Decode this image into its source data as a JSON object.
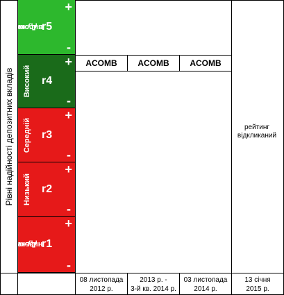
{
  "y_axis_label": "Рівні надійності депозитних вкладів",
  "levels": [
    {
      "name_line1": "Дуже",
      "name_line2": "високий",
      "code": "r5",
      "plus": "+",
      "minus": "-",
      "color": "#2db82d"
    },
    {
      "name_line1": "Високий",
      "name_line2": "",
      "code": "r4",
      "plus": "+",
      "minus": "-",
      "color": "#1a6b1a"
    },
    {
      "name_line1": "Середній",
      "name_line2": "",
      "code": "r3",
      "plus": "+",
      "minus": "-",
      "color": "#e61919"
    },
    {
      "name_line1": "Низький",
      "name_line2": "",
      "code": "r2",
      "plus": "+",
      "minus": "-",
      "color": "#e61919"
    },
    {
      "name_line1": "Дуже",
      "name_line2": "низький",
      "code": "r1",
      "plus": "+",
      "minus": "-",
      "color": "#e61919"
    }
  ],
  "ratings": [
    "ACOMB",
    "ACOMB",
    "ACOMB"
  ],
  "withdrawn_note_line1": "рейтинг",
  "withdrawn_note_line2": "відкликаний",
  "dates": [
    {
      "line1": "08 листопада",
      "line2": "2012 р."
    },
    {
      "line1": "2013 р. -",
      "line2": "3-й кв. 2014 р."
    },
    {
      "line1": "03 листопада",
      "line2": "2014 р."
    },
    {
      "line1": "13 січня",
      "line2": "2015 р."
    }
  ]
}
